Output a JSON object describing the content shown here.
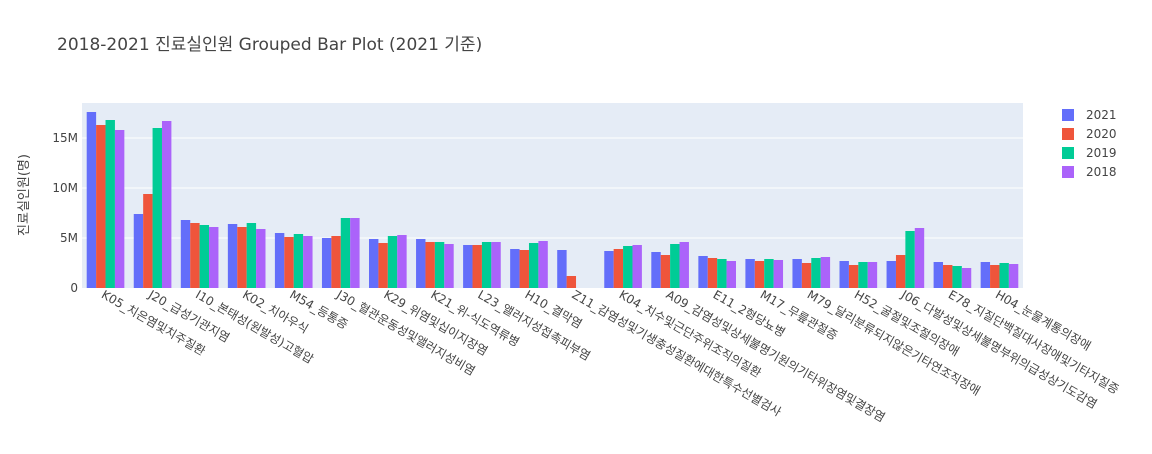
{
  "chart_data": {
    "type": "bar",
    "title": "2018-2021 진료실인원 Grouped Bar Plot (2021 기준)",
    "xlabel": "",
    "ylabel": "진료실인원(명)",
    "ylim": [
      0,
      18500000
    ],
    "yticks": [
      0,
      5000000,
      10000000,
      15000000
    ],
    "ytick_labels": [
      "0",
      "5M",
      "10M",
      "15M"
    ],
    "grid": true,
    "legend_position": "top-right",
    "categories": [
      "K05_치은염및치주질환",
      "J20_급성기관지염",
      "I10_본태성(원발성)고혈압",
      "K02_치아우식",
      "M54_등통증",
      "J30_혈관운동성및앨러지성비염",
      "K29_위염및십이지장염",
      "K21_위-식도역류병",
      "L23_앨러지성접촉피부염",
      "H10_결막염",
      "Z11_감염성및기생충성질환에대한특수선별검사",
      "K04_치수및근단주위조직의질환",
      "A09_감염성및상세불명기원의기타위장염및결장염",
      "E11_2형당뇨병",
      "M17_무릎관절증",
      "M79_달리분류되지않은기타연조직장애",
      "H52_굴절및조절의장애",
      "J06_다발성및상세불명부위의급성상기도감염",
      "E78_지질단백질대사장애및기타지질증",
      "H04_눈물계통의장애"
    ],
    "series": [
      {
        "name": "2021",
        "color": "#636efa",
        "values": [
          17600000,
          7400000,
          6800000,
          6400000,
          5500000,
          5000000,
          4900000,
          4900000,
          4300000,
          3900000,
          3800000,
          3700000,
          3600000,
          3200000,
          2900000,
          2900000,
          2700000,
          2700000,
          2600000,
          2600000
        ]
      },
      {
        "name": "2020",
        "color": "#ef553b",
        "values": [
          16300000,
          9400000,
          6500000,
          6100000,
          5100000,
          5200000,
          4500000,
          4600000,
          4300000,
          3800000,
          1200000,
          3900000,
          3300000,
          3000000,
          2700000,
          2500000,
          2300000,
          3300000,
          2300000,
          2300000
        ]
      },
      {
        "name": "2019",
        "color": "#00cc96",
        "values": [
          16800000,
          16000000,
          6300000,
          6500000,
          5400000,
          7000000,
          5200000,
          4600000,
          4600000,
          4500000,
          0,
          4200000,
          4400000,
          2900000,
          2900000,
          3000000,
          2600000,
          5700000,
          2200000,
          2500000
        ]
      },
      {
        "name": "2018",
        "color": "#ab63fa",
        "values": [
          15800000,
          16700000,
          6100000,
          5900000,
          5200000,
          7000000,
          5300000,
          4400000,
          4600000,
          4700000,
          0,
          4300000,
          4600000,
          2700000,
          2800000,
          3100000,
          2600000,
          6000000,
          2000000,
          2400000
        ]
      }
    ]
  }
}
